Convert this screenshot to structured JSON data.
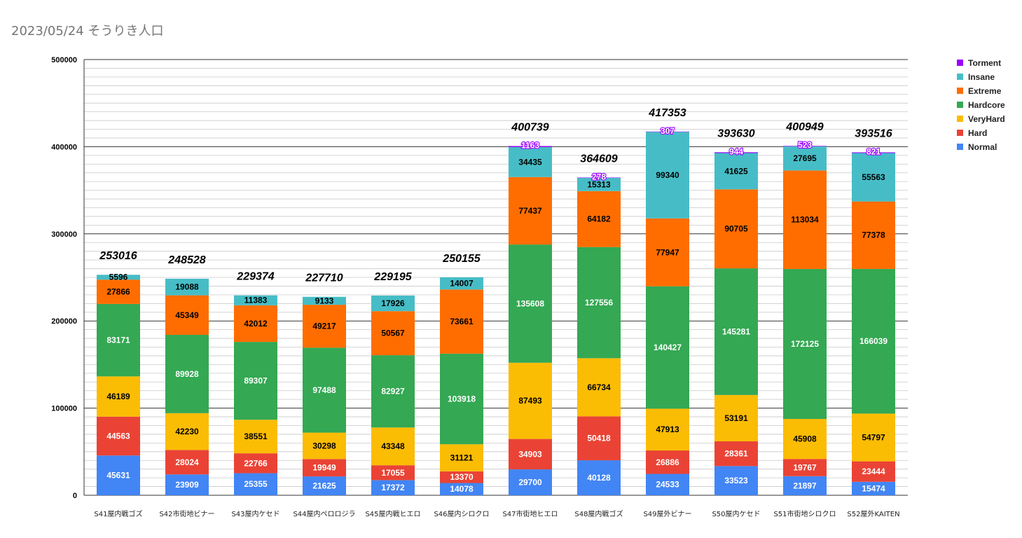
{
  "chart_data": {
    "type": "bar",
    "stacked": true,
    "title": "2023/05/24 そうりき人口",
    "xlabel": "",
    "ylabel": "",
    "ylim": [
      0,
      500000
    ],
    "yticks": [
      "0",
      "100000",
      "200000",
      "300000",
      "400000",
      "500000"
    ],
    "grid": true,
    "legend_position": "right",
    "categories": [
      "S41屋内戦ゴズ",
      "S42市街地ビナー",
      "S43屋内ケセド",
      "S44屋内ペロロジラ",
      "S45屋内戦ヒエロ",
      "S46屋内シロクロ",
      "S47市街地ヒエロ",
      "S48屋内戦ゴズ",
      "S49屋外ビナー",
      "S50屋内ケセド",
      "S51市街地シロクロ",
      "S52屋外KAITEN"
    ],
    "totals": [
      "253016",
      "248528",
      "229374",
      "227710",
      "229195",
      "250155",
      "400739",
      "364609",
      "417353",
      "393630",
      "400949",
      "393516"
    ],
    "series": [
      {
        "name": "Normal",
        "color": "#4285f4",
        "label_color": "#ffffff",
        "values": [
          45631,
          23909,
          25355,
          21625,
          17372,
          14078,
          29700,
          40128,
          24533,
          33523,
          21897,
          15474
        ]
      },
      {
        "name": "Hard",
        "color": "#ea4335",
        "label_color": "#ffffff",
        "values": [
          44563,
          28024,
          22766,
          19949,
          17055,
          13370,
          34903,
          50418,
          26886,
          28361,
          19767,
          23444
        ]
      },
      {
        "name": "VeryHard",
        "color": "#fbbc04",
        "label_color": "#000000",
        "values": [
          46189,
          42230,
          38551,
          30298,
          43348,
          31121,
          87493,
          66734,
          47913,
          53191,
          45908,
          54797
        ]
      },
      {
        "name": "Hardcore",
        "color": "#34a853",
        "label_color": "#ffffff",
        "values": [
          83171,
          89928,
          89307,
          97488,
          82927,
          103918,
          135608,
          127556,
          140427,
          145281,
          172125,
          166039
        ]
      },
      {
        "name": "Extreme",
        "color": "#ff6d01",
        "label_color": "#000000",
        "values": [
          27866,
          45349,
          42012,
          49217,
          50567,
          73661,
          77437,
          64182,
          77947,
          90705,
          113034,
          77378
        ]
      },
      {
        "name": "Insane",
        "color": "#46bdc6",
        "label_color": "#000000",
        "values": [
          5596,
          19088,
          11383,
          9133,
          17926,
          14007,
          34435,
          15313,
          99340,
          41625,
          27695,
          55563
        ]
      },
      {
        "name": "Torment",
        "color": "#9900ff",
        "label_color": "#ffffff",
        "values": [
          null,
          null,
          null,
          null,
          null,
          null,
          1163,
          278,
          307,
          944,
          523,
          821
        ]
      }
    ]
  }
}
